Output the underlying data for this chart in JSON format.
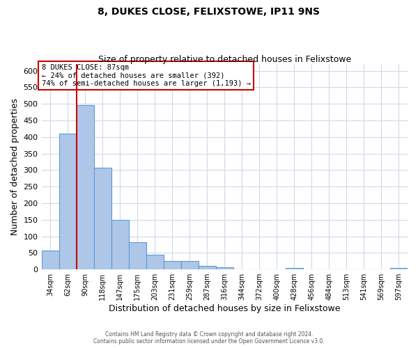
{
  "title": "8, DUKES CLOSE, FELIXSTOWE, IP11 9NS",
  "subtitle": "Size of property relative to detached houses in Felixstowe",
  "xlabel": "Distribution of detached houses by size in Felixstowe",
  "ylabel": "Number of detached properties",
  "bar_labels": [
    "34sqm",
    "62sqm",
    "90sqm",
    "118sqm",
    "147sqm",
    "175sqm",
    "203sqm",
    "231sqm",
    "259sqm",
    "287sqm",
    "316sqm",
    "344sqm",
    "372sqm",
    "400sqm",
    "428sqm",
    "456sqm",
    "484sqm",
    "513sqm",
    "541sqm",
    "569sqm",
    "597sqm"
  ],
  "bar_values": [
    58,
    410,
    497,
    307,
    149,
    82,
    45,
    25,
    25,
    10,
    7,
    0,
    0,
    0,
    4,
    0,
    0,
    0,
    0,
    0,
    5
  ],
  "bar_color": "#aec6e8",
  "bar_edge_color": "#5b9bd5",
  "ylim": [
    0,
    620
  ],
  "yticks": [
    0,
    50,
    100,
    150,
    200,
    250,
    300,
    350,
    400,
    450,
    500,
    550,
    600
  ],
  "property_line_bar_index": 2,
  "property_line_color": "#cc0000",
  "annotation_title": "8 DUKES CLOSE: 87sqm",
  "annotation_line1": "← 24% of detached houses are smaller (392)",
  "annotation_line2": "74% of semi-detached houses are larger (1,193) →",
  "annotation_box_color": "#cc0000",
  "footer_line1": "Contains HM Land Registry data © Crown copyright and database right 2024.",
  "footer_line2": "Contains public sector information licensed under the Open Government Licence v3.0.",
  "background_color": "#ffffff",
  "grid_color": "#d0d8e8",
  "title_fontsize": 10,
  "subtitle_fontsize": 9
}
